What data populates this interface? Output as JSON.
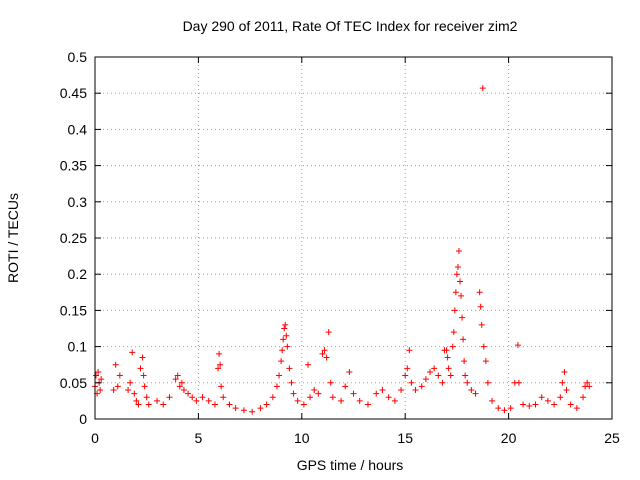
{
  "chart_data": {
    "type": "scatter",
    "title": "Day 290 of 2011, Rate Of TEC Index for receiver zim2",
    "xlabel": "GPS time / hours",
    "ylabel": "ROTI / TECUs",
    "xlim": [
      0,
      25
    ],
    "ylim": [
      0,
      0.5
    ],
    "xticks": [
      0,
      5,
      10,
      15,
      20,
      25
    ],
    "yticks": [
      0,
      0.05,
      0.1,
      0.15,
      0.2,
      0.25,
      0.3,
      0.35,
      0.4,
      0.45,
      0.5
    ],
    "grid": true,
    "marker": "+",
    "color": "#ff0000",
    "series": [
      {
        "points": [
          [
            0.0,
            0.045
          ],
          [
            0.05,
            0.06
          ],
          [
            0.1,
            0.035
          ],
          [
            0.15,
            0.065
          ],
          [
            0.2,
            0.05
          ],
          [
            0.25,
            0.04
          ],
          [
            0.3,
            0.055
          ],
          [
            0.9,
            0.04
          ],
          [
            1.0,
            0.075
          ],
          [
            1.1,
            0.045
          ],
          [
            1.2,
            0.06
          ],
          [
            1.6,
            0.04
          ],
          [
            1.7,
            0.05
          ],
          [
            1.8,
            0.092
          ],
          [
            1.9,
            0.035
          ],
          [
            2.0,
            0.025
          ],
          [
            2.1,
            0.02
          ],
          [
            2.2,
            0.07
          ],
          [
            2.3,
            0.085
          ],
          [
            2.35,
            0.06
          ],
          [
            2.4,
            0.045
          ],
          [
            2.5,
            0.03
          ],
          [
            2.6,
            0.02
          ],
          [
            3.0,
            0.025
          ],
          [
            3.3,
            0.02
          ],
          [
            3.6,
            0.03
          ],
          [
            3.9,
            0.055
          ],
          [
            4.0,
            0.06
          ],
          [
            4.1,
            0.045
          ],
          [
            4.2,
            0.05
          ],
          [
            4.3,
            0.04
          ],
          [
            4.5,
            0.035
          ],
          [
            4.7,
            0.03
          ],
          [
            4.9,
            0.025
          ],
          [
            5.2,
            0.03
          ],
          [
            5.5,
            0.025
          ],
          [
            5.8,
            0.02
          ],
          [
            5.95,
            0.07
          ],
          [
            6.0,
            0.09
          ],
          [
            6.05,
            0.075
          ],
          [
            6.1,
            0.045
          ],
          [
            6.2,
            0.03
          ],
          [
            6.5,
            0.02
          ],
          [
            6.8,
            0.015
          ],
          [
            7.2,
            0.012
          ],
          [
            7.6,
            0.01
          ],
          [
            8.0,
            0.015
          ],
          [
            8.3,
            0.02
          ],
          [
            8.6,
            0.03
          ],
          [
            8.8,
            0.045
          ],
          [
            8.9,
            0.06
          ],
          [
            9.0,
            0.08
          ],
          [
            9.05,
            0.095
          ],
          [
            9.1,
            0.11
          ],
          [
            9.15,
            0.125
          ],
          [
            9.2,
            0.13
          ],
          [
            9.25,
            0.115
          ],
          [
            9.3,
            0.1
          ],
          [
            9.4,
            0.07
          ],
          [
            9.5,
            0.05
          ],
          [
            9.6,
            0.035
          ],
          [
            9.8,
            0.025
          ],
          [
            10.1,
            0.02
          ],
          [
            10.3,
            0.075
          ],
          [
            10.4,
            0.03
          ],
          [
            10.6,
            0.04
          ],
          [
            10.8,
            0.035
          ],
          [
            11.0,
            0.09
          ],
          [
            11.1,
            0.095
          ],
          [
            11.2,
            0.085
          ],
          [
            11.3,
            0.12
          ],
          [
            11.4,
            0.05
          ],
          [
            11.5,
            0.03
          ],
          [
            11.9,
            0.025
          ],
          [
            12.1,
            0.045
          ],
          [
            12.3,
            0.065
          ],
          [
            12.5,
            0.035
          ],
          [
            12.8,
            0.025
          ],
          [
            13.2,
            0.02
          ],
          [
            13.6,
            0.035
          ],
          [
            13.9,
            0.04
          ],
          [
            14.2,
            0.03
          ],
          [
            14.5,
            0.025
          ],
          [
            14.8,
            0.04
          ],
          [
            15.0,
            0.06
          ],
          [
            15.1,
            0.07
          ],
          [
            15.2,
            0.095
          ],
          [
            15.3,
            0.05
          ],
          [
            15.5,
            0.04
          ],
          [
            15.8,
            0.045
          ],
          [
            16.0,
            0.055
          ],
          [
            16.2,
            0.065
          ],
          [
            16.4,
            0.07
          ],
          [
            16.6,
            0.06
          ],
          [
            16.8,
            0.05
          ],
          [
            16.9,
            0.095
          ],
          [
            17.0,
            0.095
          ],
          [
            17.05,
            0.085
          ],
          [
            17.1,
            0.07
          ],
          [
            17.2,
            0.06
          ],
          [
            17.3,
            0.1
          ],
          [
            17.35,
            0.12
          ],
          [
            17.4,
            0.15
          ],
          [
            17.45,
            0.175
          ],
          [
            17.5,
            0.2
          ],
          [
            17.55,
            0.21
          ],
          [
            17.6,
            0.232
          ],
          [
            17.65,
            0.19
          ],
          [
            17.7,
            0.17
          ],
          [
            17.75,
            0.14
          ],
          [
            17.8,
            0.11
          ],
          [
            17.85,
            0.08
          ],
          [
            17.9,
            0.06
          ],
          [
            18.0,
            0.05
          ],
          [
            18.2,
            0.04
          ],
          [
            18.4,
            0.035
          ],
          [
            18.6,
            0.175
          ],
          [
            18.65,
            0.155
          ],
          [
            18.7,
            0.13
          ],
          [
            18.75,
            0.457
          ],
          [
            18.8,
            0.1
          ],
          [
            18.9,
            0.08
          ],
          [
            19.0,
            0.05
          ],
          [
            19.2,
            0.025
          ],
          [
            19.5,
            0.015
          ],
          [
            19.8,
            0.012
          ],
          [
            20.1,
            0.015
          ],
          [
            20.3,
            0.05
          ],
          [
            20.45,
            0.102
          ],
          [
            20.5,
            0.05
          ],
          [
            20.7,
            0.02
          ],
          [
            21.0,
            0.018
          ],
          [
            21.3,
            0.02
          ],
          [
            21.6,
            0.03
          ],
          [
            21.9,
            0.025
          ],
          [
            22.2,
            0.02
          ],
          [
            22.5,
            0.03
          ],
          [
            22.6,
            0.05
          ],
          [
            22.7,
            0.065
          ],
          [
            22.8,
            0.04
          ],
          [
            23.0,
            0.02
          ],
          [
            23.3,
            0.015
          ],
          [
            23.6,
            0.03
          ],
          [
            23.7,
            0.045
          ],
          [
            23.8,
            0.05
          ],
          [
            23.9,
            0.045
          ]
        ]
      }
    ]
  }
}
